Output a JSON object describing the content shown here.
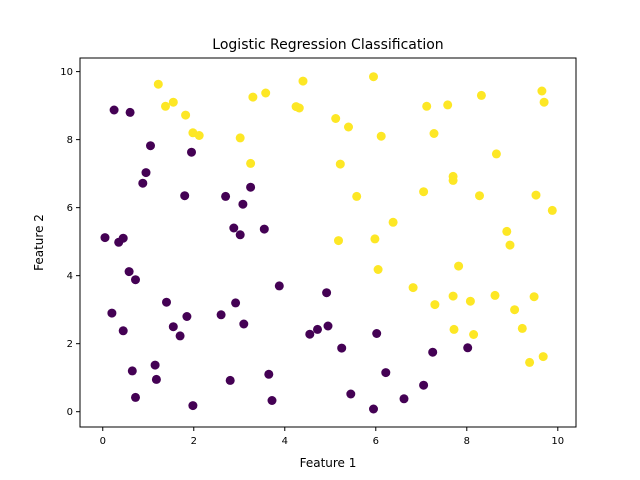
{
  "chart_data": {
    "type": "scatter",
    "title": "Logistic Regression Classification",
    "xlabel": "Feature 1",
    "ylabel": "Feature 2",
    "xlim": [
      -0.5,
      10.4
    ],
    "ylim": [
      -0.45,
      10.4
    ],
    "xticks": [
      0,
      2,
      4,
      6,
      8,
      10
    ],
    "yticks": [
      0,
      2,
      4,
      6,
      8,
      10
    ],
    "grid": false,
    "legend": "none",
    "class_colors": {
      "0": "#440154",
      "1": "#fde725"
    },
    "series": [
      {
        "class": 0,
        "color": "#440154",
        "points": [
          [
            0.05,
            5.12
          ],
          [
            0.25,
            8.87
          ],
          [
            0.35,
            4.98
          ],
          [
            0.45,
            5.1
          ],
          [
            0.2,
            2.9
          ],
          [
            0.45,
            2.38
          ],
          [
            0.6,
            8.8
          ],
          [
            0.58,
            4.12
          ],
          [
            0.72,
            3.88
          ],
          [
            0.65,
            1.2
          ],
          [
            0.72,
            0.42
          ],
          [
            0.88,
            6.72
          ],
          [
            0.95,
            7.03
          ],
          [
            1.05,
            7.82
          ],
          [
            1.15,
            1.37
          ],
          [
            1.18,
            0.95
          ],
          [
            1.4,
            3.22
          ],
          [
            1.55,
            2.5
          ],
          [
            1.7,
            2.23
          ],
          [
            1.8,
            6.35
          ],
          [
            1.85,
            2.8
          ],
          [
            1.95,
            7.63
          ],
          [
            1.98,
            0.18
          ],
          [
            2.6,
            2.85
          ],
          [
            2.7,
            6.33
          ],
          [
            2.8,
            0.92
          ],
          [
            2.88,
            5.4
          ],
          [
            2.92,
            3.2
          ],
          [
            3.02,
            5.2
          ],
          [
            3.08,
            6.1
          ],
          [
            3.1,
            2.58
          ],
          [
            3.25,
            6.6
          ],
          [
            3.55,
            5.37
          ],
          [
            3.65,
            1.1
          ],
          [
            3.72,
            0.33
          ],
          [
            3.88,
            3.7
          ],
          [
            4.55,
            2.28
          ],
          [
            4.72,
            2.42
          ],
          [
            4.92,
            3.5
          ],
          [
            4.95,
            2.52
          ],
          [
            5.25,
            1.87
          ],
          [
            5.45,
            0.52
          ],
          [
            5.95,
            0.08
          ],
          [
            6.02,
            2.3
          ],
          [
            6.22,
            1.15
          ],
          [
            6.62,
            0.38
          ],
          [
            7.05,
            0.78
          ],
          [
            7.25,
            1.75
          ],
          [
            8.02,
            1.88
          ]
        ]
      },
      {
        "class": 1,
        "color": "#fde725",
        "points": [
          [
            1.22,
            9.63
          ],
          [
            1.38,
            8.98
          ],
          [
            1.55,
            9.1
          ],
          [
            1.82,
            8.72
          ],
          [
            1.98,
            8.2
          ],
          [
            2.12,
            8.12
          ],
          [
            3.02,
            8.05
          ],
          [
            3.25,
            7.3
          ],
          [
            3.3,
            9.25
          ],
          [
            3.58,
            9.37
          ],
          [
            4.25,
            8.97
          ],
          [
            4.32,
            8.93
          ],
          [
            4.4,
            9.72
          ],
          [
            5.12,
            8.62
          ],
          [
            5.18,
            5.03
          ],
          [
            5.22,
            7.28
          ],
          [
            5.4,
            8.37
          ],
          [
            5.58,
            6.33
          ],
          [
            5.95,
            9.85
          ],
          [
            5.98,
            5.08
          ],
          [
            6.05,
            4.18
          ],
          [
            6.12,
            8.1
          ],
          [
            6.38,
            5.57
          ],
          [
            6.82,
            3.65
          ],
          [
            7.05,
            6.47
          ],
          [
            7.12,
            8.98
          ],
          [
            7.28,
            8.18
          ],
          [
            7.3,
            3.15
          ],
          [
            7.58,
            9.02
          ],
          [
            7.7,
            6.92
          ],
          [
            7.7,
            6.8
          ],
          [
            7.7,
            3.4
          ],
          [
            7.72,
            2.42
          ],
          [
            7.82,
            4.28
          ],
          [
            8.08,
            3.25
          ],
          [
            8.15,
            2.27
          ],
          [
            8.28,
            6.35
          ],
          [
            8.32,
            9.3
          ],
          [
            8.62,
            3.42
          ],
          [
            8.65,
            7.58
          ],
          [
            8.88,
            5.3
          ],
          [
            8.95,
            4.9
          ],
          [
            9.05,
            3.0
          ],
          [
            9.22,
            2.45
          ],
          [
            9.38,
            1.45
          ],
          [
            9.48,
            3.38
          ],
          [
            9.52,
            6.37
          ],
          [
            9.65,
            9.43
          ],
          [
            9.68,
            1.62
          ],
          [
            9.7,
            9.1
          ],
          [
            9.88,
            5.92
          ]
        ]
      }
    ]
  }
}
